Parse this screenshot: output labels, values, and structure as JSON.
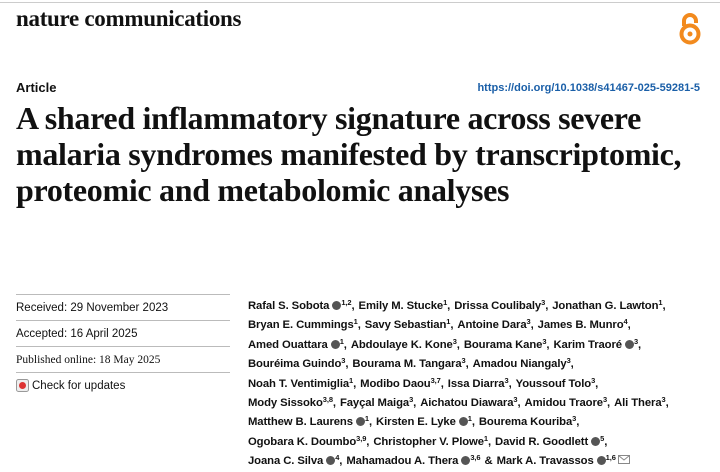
{
  "journal": "nature communications",
  "article_type": "Article",
  "doi": "https://doi.org/10.1038/s41467-025-59281-5",
  "title": "A shared inflammatory signature across severe malaria syndromes manifested by transcriptomic, proteomic and metabolomic analyses",
  "dates": {
    "received": "Received: 29 November 2023",
    "accepted": "Accepted: 16 April 2025",
    "published": "Published online: 18 May 2025"
  },
  "check_updates": "Check for updates",
  "author_lines": [
    [
      {
        "name": "Rafal S. Sobota",
        "orcid": true,
        "affil": "1,2",
        "sep": ","
      },
      {
        "name": "Emily M. Stucke",
        "affil": "1",
        "sep": ","
      },
      {
        "name": "Drissa Coulibaly",
        "affil": "3",
        "sep": ","
      },
      {
        "name": "Jonathan G. Lawton",
        "affil": "1",
        "sep": ","
      }
    ],
    [
      {
        "name": "Bryan E. Cummings",
        "affil": "1",
        "sep": ","
      },
      {
        "name": "Savy Sebastian",
        "affil": "1",
        "sep": ","
      },
      {
        "name": "Antoine Dara",
        "affil": "3",
        "sep": ","
      },
      {
        "name": "James B. Munro",
        "affil": "4",
        "sep": ","
      }
    ],
    [
      {
        "name": "Amed Ouattara",
        "orcid": true,
        "affil": "1",
        "sep": ","
      },
      {
        "name": "Abdoulaye K. Kone",
        "affil": "3",
        "sep": ","
      },
      {
        "name": "Bourama Kane",
        "affil": "3",
        "sep": ","
      },
      {
        "name": "Karim Traoré",
        "orcid": true,
        "affil": "3",
        "sep": ","
      }
    ],
    [
      {
        "name": "Bouréima Guindo",
        "affil": "3",
        "sep": ","
      },
      {
        "name": "Bourama M. Tangara",
        "affil": "3",
        "sep": ","
      },
      {
        "name": "Amadou Niangaly",
        "affil": "3",
        "sep": ","
      }
    ],
    [
      {
        "name": "Noah T. Ventimiglia",
        "affil": "1",
        "sep": ","
      },
      {
        "name": "Modibo Daou",
        "affil": "3,7",
        "sep": ","
      },
      {
        "name": "Issa Diarra",
        "affil": "3",
        "sep": ","
      },
      {
        "name": "Youssouf Tolo",
        "affil": "3",
        "sep": ","
      }
    ],
    [
      {
        "name": "Mody Sissoko",
        "affil": "3,8",
        "sep": ","
      },
      {
        "name": "Fayçal Maiga",
        "affil": "3",
        "sep": ","
      },
      {
        "name": "Aichatou Diawara",
        "affil": "3",
        "sep": ","
      },
      {
        "name": "Amidou Traore",
        "affil": "3",
        "sep": ","
      },
      {
        "name": "Ali Thera",
        "affil": "3",
        "sep": ","
      }
    ],
    [
      {
        "name": "Matthew B. Laurens",
        "orcid": true,
        "affil": "1",
        "sep": ","
      },
      {
        "name": "Kirsten E. Lyke",
        "orcid": true,
        "affil": "1",
        "sep": ","
      },
      {
        "name": "Bourema Kouriba",
        "affil": "3",
        "sep": ","
      }
    ],
    [
      {
        "name": "Ogobara K. Doumbo",
        "affil": "3,9",
        "sep": ","
      },
      {
        "name": "Christopher V. Plowe",
        "affil": "1",
        "sep": ","
      },
      {
        "name": "David R. Goodlett",
        "orcid": true,
        "affil": "5",
        "sep": ","
      }
    ],
    [
      {
        "name": "Joana C. Silva",
        "orcid": true,
        "affil": "4",
        "sep": ","
      },
      {
        "name": "Mahamadou A. Thera",
        "orcid": true,
        "affil": "3,6",
        "sep": "&"
      },
      {
        "name": "Mark A. Travassos",
        "orcid": true,
        "affil": "1,6",
        "email": true
      }
    ]
  ]
}
